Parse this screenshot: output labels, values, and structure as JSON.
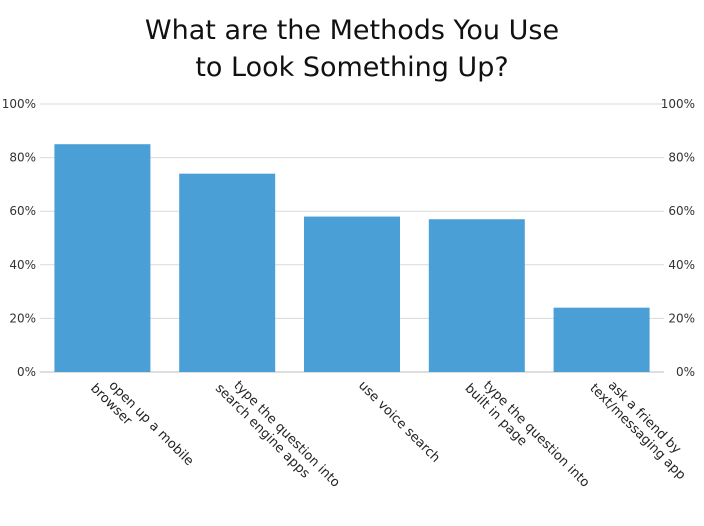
{
  "chart_data": {
    "type": "bar",
    "title_lines": [
      "What are the Methods You Use",
      "to Look Something Up?"
    ],
    "categories": [
      [
        "open up a mobile",
        "browser"
      ],
      [
        "type the question into",
        "search engine apps"
      ],
      [
        "use voice search"
      ],
      [
        "type the question into",
        "built in page"
      ],
      [
        "ask a friend by",
        "text/messaging app"
      ]
    ],
    "values": [
      85,
      74,
      58,
      57,
      24
    ],
    "ylim": [
      0,
      100
    ],
    "yticks": [
      0,
      20,
      40,
      60,
      80,
      100
    ],
    "ytick_labels": [
      "0%",
      "20%",
      "40%",
      "60%",
      "80%",
      "100%"
    ],
    "right_axis_labels": true,
    "grid": true,
    "bar_color": "#4a9fd6"
  }
}
